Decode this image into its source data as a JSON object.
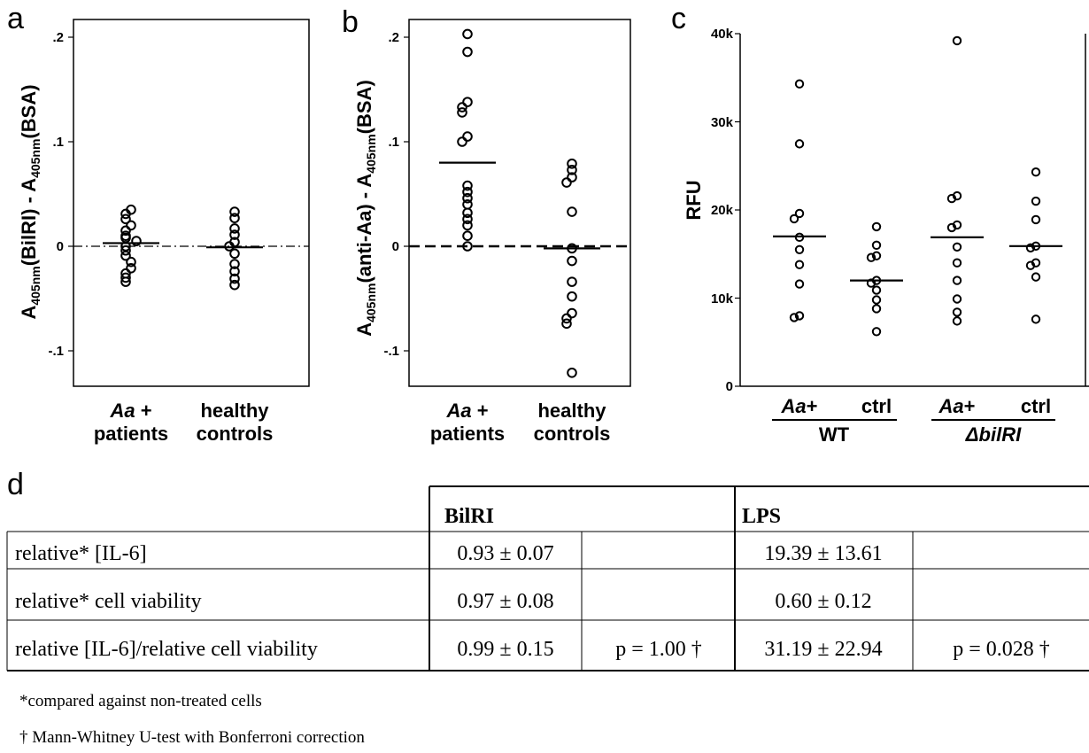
{
  "panels": [
    {
      "letter": "a",
      "y_label": {
        "p1": "A",
        "s1": "405nm",
        "p2": "(BilRI) - A",
        "s2": "405nm",
        "p3": "(BSA)"
      },
      "y_ticks": [
        ".2",
        ".1",
        "0",
        "-.1"
      ],
      "groups": [
        {
          "line1_italic": "Aa",
          "line1_rest": " +",
          "line2": "patients"
        },
        {
          "line1_italic": "",
          "line1_rest": "healthy",
          "line2": "controls"
        }
      ]
    },
    {
      "letter": "b",
      "y_label": {
        "p1": "A",
        "s1": "405nm",
        "p2": "(anti-Aa) - A",
        "s2": "405nm",
        "p3": "(BSA)"
      },
      "y_ticks": [
        ".2",
        ".1",
        "0",
        "-.1"
      ],
      "groups": [
        {
          "line1_italic": "Aa",
          "line1_rest": " +",
          "line2": "patients"
        },
        {
          "line1_italic": "",
          "line1_rest": "healthy",
          "line2": "controls"
        }
      ]
    },
    {
      "letter": "c",
      "y_label": "RFU",
      "y_ticks": [
        "40k",
        "30k",
        "20k",
        "10k",
        "0"
      ],
      "groups": [
        {
          "line1_italic": "Aa",
          "line1_rest": "+"
        },
        {
          "line1_italic": "",
          "line1_rest": "ctrl"
        },
        {
          "line1_italic": "Aa",
          "line1_rest": "+"
        },
        {
          "line1_italic": "",
          "line1_rest": "ctrl"
        }
      ],
      "strains": [
        "WT",
        "ΔbilRI"
      ]
    }
  ],
  "chart_data": [
    {
      "type": "scatter",
      "panel": "a",
      "ylim": [
        -0.135,
        0.22
      ],
      "y_ticks": [
        0.2,
        0.1,
        0,
        -0.1
      ],
      "zero_line": "dash-dot",
      "categories": [
        "Aa + patients",
        "healthy controls"
      ],
      "series": [
        {
          "values": [
            0.035,
            0.031,
            0.026,
            0.02,
            0.015,
            0.01,
            0.008,
            0.005,
            0.0,
            -0.004,
            -0.009,
            -0.015,
            -0.021,
            -0.026,
            -0.03,
            -0.034
          ],
          "mean": 0.003
        },
        {
          "values": [
            0.033,
            0.027,
            0.017,
            0.011,
            0.004,
            0.0,
            -0.007,
            -0.017,
            -0.024,
            -0.031,
            -0.037
          ],
          "mean": -0.001
        }
      ]
    },
    {
      "type": "scatter",
      "panel": "b",
      "ylim": [
        -0.135,
        0.22
      ],
      "y_ticks": [
        0.2,
        0.1,
        0,
        -0.1
      ],
      "zero_line": "dashed",
      "categories": [
        "Aa + patients",
        "healthy controls"
      ],
      "series": [
        {
          "values": [
            0.203,
            0.186,
            0.138,
            0.133,
            0.128,
            0.105,
            0.1,
            0.058,
            0.052,
            0.046,
            0.04,
            0.032,
            0.026,
            0.02,
            0.01,
            0.0
          ],
          "mean": 0.08
        },
        {
          "values": [
            0.079,
            0.073,
            0.066,
            0.061,
            0.033,
            -0.002,
            -0.014,
            -0.034,
            -0.048,
            -0.064,
            -0.069,
            -0.074,
            -0.121
          ],
          "mean": -0.002
        }
      ]
    },
    {
      "type": "scatter",
      "panel": "c",
      "ylim": [
        0,
        40000
      ],
      "y_ticks": [
        40000,
        30000,
        20000,
        10000,
        0
      ],
      "categories": [
        "Aa+ WT",
        "ctrl WT",
        "Aa+ ΔbilRI",
        "ctrl ΔbilRI"
      ],
      "series": [
        {
          "values": [
            34300,
            27500,
            19600,
            19000,
            16900,
            15500,
            13800,
            11600,
            8000,
            7800
          ],
          "mean": 17000
        },
        {
          "values": [
            18100,
            16000,
            14800,
            14600,
            12000,
            11700,
            10900,
            9800,
            8800,
            6200
          ],
          "mean": 12000
        },
        {
          "values": [
            39200,
            21600,
            21300,
            18300,
            18000,
            15800,
            14000,
            12000,
            9900,
            8400,
            7400
          ],
          "mean": 16900
        },
        {
          "values": [
            24300,
            21000,
            18900,
            15900,
            15700,
            14000,
            13700,
            12400,
            7600
          ],
          "mean": 15900
        }
      ]
    }
  ],
  "panel_d": {
    "letter": "d",
    "header": {
      "bilri": "BilRI",
      "lps": "LPS"
    },
    "rows": [
      {
        "label": "relative* [IL-6]",
        "bilri": "0.93 ± 0.07",
        "bilri_p": "",
        "lps": "19.39 ± 13.61",
        "lps_p": ""
      },
      {
        "label": "relative* cell viability",
        "bilri": "0.97 ± 0.08",
        "bilri_p": "",
        "lps": "0.60 ± 0.12",
        "lps_p": ""
      },
      {
        "label": "relative [IL-6]/relative cell viability",
        "bilri": "0.99 ± 0.15",
        "bilri_p": "p = 1.00 †",
        "lps": "31.19 ± 22.94",
        "lps_p": "p = 0.028 †"
      }
    ],
    "footnotes": [
      "*compared against non-treated cells",
      "† Mann-Whitney U-test with Bonferroni correction"
    ]
  }
}
